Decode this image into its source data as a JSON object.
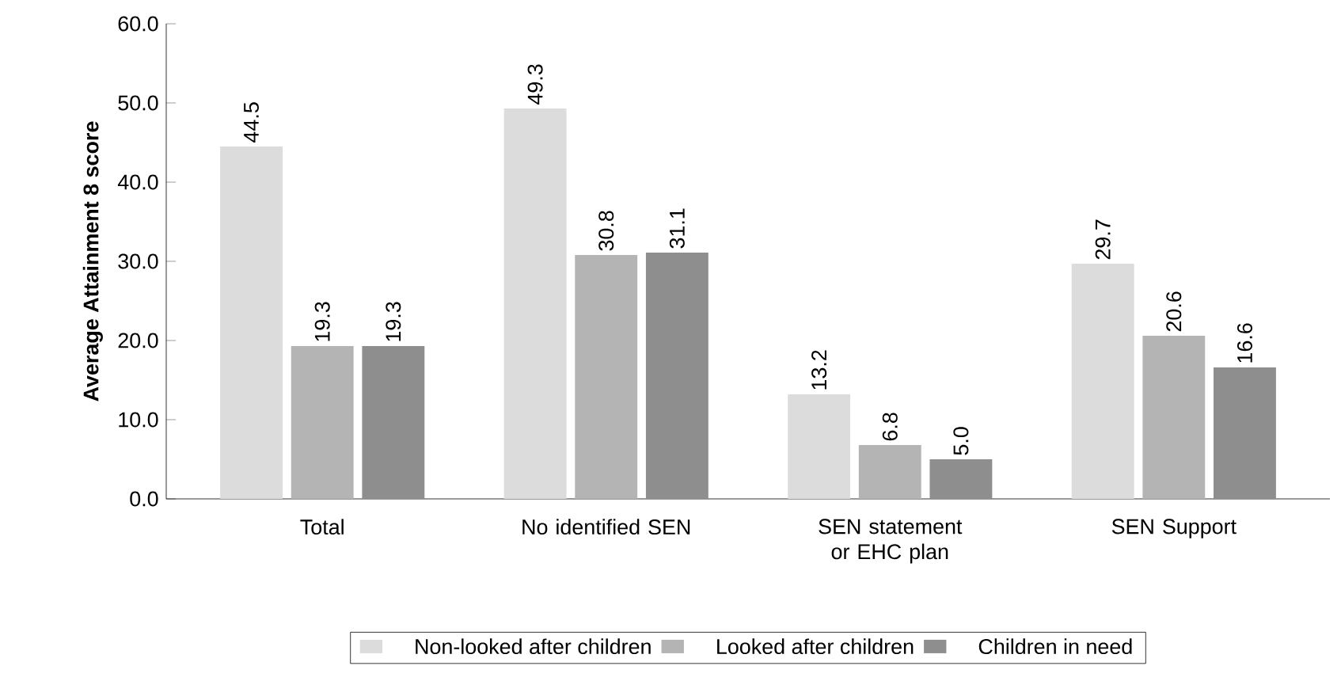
{
  "chart_data": {
    "type": "bar",
    "ylabel": "Average Attainment 8 score",
    "categories": [
      "Total",
      "No identified SEN",
      "SEN statement or EHC plan",
      "SEN Support"
    ],
    "series": [
      {
        "name": "Non-looked after children",
        "color": "#dcdcdc",
        "values": [
          44.5,
          49.3,
          13.2,
          29.7
        ],
        "value_labels": [
          "44.5",
          "49.3",
          "13.2",
          "29.7"
        ]
      },
      {
        "name": "Looked after children",
        "color": "#b4b4b4",
        "values": [
          19.3,
          30.8,
          6.8,
          20.6
        ],
        "value_labels": [
          "19.3",
          "30.8",
          "6.8",
          "20.6"
        ]
      },
      {
        "name": "Children in need",
        "color": "#8e8e8e",
        "values": [
          19.3,
          31.1,
          5.0,
          16.6
        ],
        "value_labels": [
          "19.3",
          "31.1",
          "5.0",
          "16.6"
        ]
      }
    ],
    "ylim": [
      0,
      60
    ],
    "yticks": [
      {
        "value": 0,
        "label": "0.0"
      },
      {
        "value": 10,
        "label": "10.0"
      },
      {
        "value": 20,
        "label": "20.0"
      },
      {
        "value": 30,
        "label": "30.0"
      },
      {
        "value": 40,
        "label": "40.0"
      },
      {
        "value": 50,
        "label": "50.0"
      },
      {
        "value": 60,
        "label": "60.0"
      }
    ],
    "legend": "bottom",
    "grid": false
  }
}
